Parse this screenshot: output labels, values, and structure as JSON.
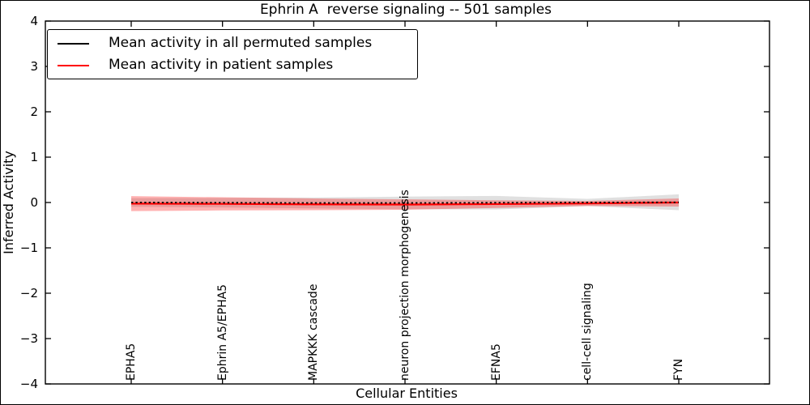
{
  "chart_data": {
    "type": "line",
    "title": "Ephrin A  reverse signaling -- 501 samples",
    "xlabel": "Cellular Entities",
    "ylabel": "Inferred Activity",
    "ylim": [
      -4,
      4
    ],
    "yticks": [
      4,
      3,
      2,
      1,
      0,
      -1,
      -2,
      -3,
      -4
    ],
    "ytick_labels": [
      "4",
      "3",
      "2",
      "1",
      "0",
      "−1",
      "−2",
      "−3",
      "−4"
    ],
    "categories": [
      "EPHA5",
      "Ephrin A5/EPHA5",
      "MAPKKK cascade",
      "neuron projection morphogenesis",
      "EFNA5",
      "cell-cell signaling",
      "FYN"
    ],
    "series": [
      {
        "name": "Mean activity in all permuted samples",
        "color": "#000000",
        "line_style": "dotted",
        "values": [
          0.0,
          -0.005,
          -0.01,
          -0.01,
          -0.005,
          0.0,
          0.005
        ],
        "band_halfwidth": [
          0.095,
          0.105,
          0.12,
          0.14,
          0.15,
          0.08,
          0.175
        ],
        "band_fill": "rgba(0,0,0,0.12)"
      },
      {
        "name": "Mean activity in patient samples",
        "color": "#ff0000",
        "line_style": "solid",
        "values": [
          -0.025,
          -0.03,
          -0.04,
          -0.045,
          -0.035,
          -0.02,
          0.0
        ],
        "band_halfwidth": [
          0.165,
          0.145,
          0.13,
          0.115,
          0.085,
          0.055,
          0.09
        ],
        "band_fill": "rgba(255,0,0,0.30)"
      }
    ],
    "legend_position": "upper left",
    "grid": false,
    "axis_color": "#000000",
    "background_color": "#ffffff"
  }
}
